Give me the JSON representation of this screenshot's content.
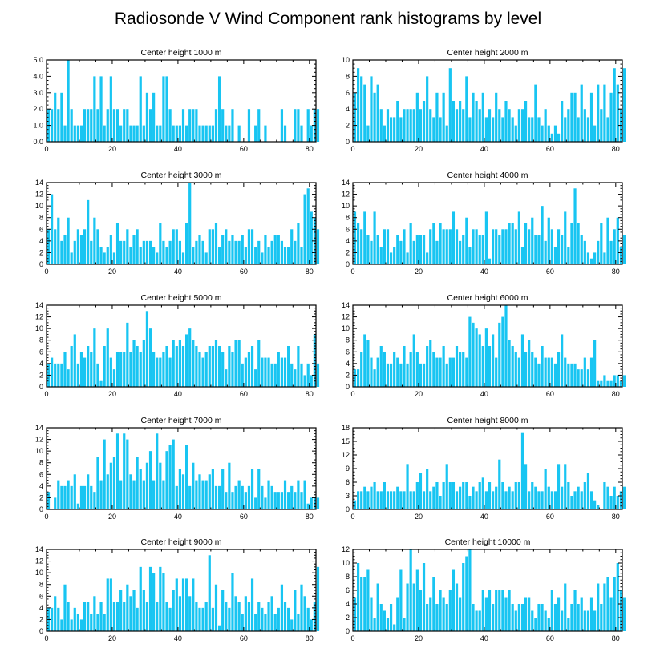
{
  "title": "Radiosonde V Wind Component rank histograms by level",
  "chart_data": [
    {
      "type": "bar",
      "title": "Center height 1000 m",
      "xlim": [
        0,
        82
      ],
      "ylim": [
        0,
        5
      ],
      "xticks": [
        0,
        20,
        40,
        60,
        80
      ],
      "yticks": [
        "0.0",
        "1.0",
        "2.0",
        "3.0",
        "4.0",
        "5.0"
      ],
      "values": [
        2,
        2,
        3,
        2,
        3,
        1,
        5,
        2,
        1,
        1,
        1,
        2,
        2,
        2,
        4,
        2,
        4,
        1,
        2,
        4,
        2,
        2,
        1,
        2,
        2,
        1,
        1,
        1,
        4,
        1,
        3,
        2,
        3,
        1,
        1,
        4,
        4,
        2,
        1,
        1,
        1,
        2,
        1,
        2,
        2,
        2,
        1,
        1,
        1,
        1,
        1,
        2,
        4,
        2,
        1,
        1,
        2,
        0,
        1,
        0,
        0,
        2,
        0,
        1,
        2,
        0,
        1,
        0,
        0,
        0,
        0,
        2,
        1,
        0,
        0,
        2,
        2,
        1,
        0,
        2,
        1,
        2,
        2
      ]
    },
    {
      "type": "bar",
      "title": "Center height 2000 m",
      "xlim": [
        0,
        82
      ],
      "ylim": [
        0,
        10
      ],
      "xticks": [
        0,
        20,
        40,
        60,
        80
      ],
      "yticks": [
        "0",
        "2",
        "4",
        "6",
        "8",
        "10"
      ],
      "values": [
        6,
        9,
        8,
        7,
        2,
        8,
        6,
        7,
        4,
        2,
        4,
        3,
        3,
        5,
        3,
        4,
        4,
        4,
        4,
        6,
        4,
        5,
        8,
        4,
        3,
        6,
        3,
        6,
        2,
        9,
        5,
        4,
        5,
        4,
        8,
        3,
        6,
        5,
        4,
        6,
        3,
        4,
        3,
        6,
        4,
        3,
        5,
        4,
        3,
        2,
        4,
        4,
        5,
        3,
        3,
        7,
        3,
        2,
        4,
        2,
        1,
        2,
        1,
        5,
        3,
        4,
        6,
        6,
        3,
        7,
        4,
        3,
        6,
        2,
        7,
        4,
        7,
        3,
        6,
        9,
        7,
        4,
        9
      ]
    },
    {
      "type": "bar",
      "title": "Center height 3000 m",
      "xlim": [
        0,
        82
      ],
      "ylim": [
        0,
        14
      ],
      "xticks": [
        0,
        20,
        40,
        60,
        80
      ],
      "yticks": [
        "0",
        "2",
        "4",
        "6",
        "8",
        "10",
        "12",
        "14"
      ],
      "values": [
        6,
        12,
        6,
        8,
        4,
        5,
        8,
        2,
        4,
        6,
        5,
        6,
        11,
        4,
        8,
        6,
        3,
        2,
        3,
        5,
        2,
        7,
        4,
        4,
        6,
        3,
        5,
        6,
        3,
        4,
        4,
        4,
        3,
        2,
        7,
        4,
        3,
        4,
        6,
        6,
        4,
        2,
        7,
        14,
        3,
        4,
        5,
        4,
        2,
        6,
        6,
        7,
        3,
        5,
        6,
        4,
        5,
        4,
        4,
        5,
        3,
        6,
        6,
        3,
        4,
        2,
        5,
        3,
        4,
        5,
        5,
        4,
        3,
        3,
        6,
        4,
        7,
        3,
        12,
        13,
        9,
        8,
        6
      ]
    },
    {
      "type": "bar",
      "title": "Center height 4000 m",
      "xlim": [
        0,
        82
      ],
      "ylim": [
        0,
        14
      ],
      "xticks": [
        0,
        20,
        40,
        60,
        80
      ],
      "yticks": [
        "0",
        "2",
        "4",
        "6",
        "8",
        "10",
        "12",
        "14"
      ],
      "values": [
        9,
        7,
        6,
        9,
        5,
        4,
        9,
        5,
        3,
        6,
        6,
        2,
        3,
        5,
        4,
        6,
        2,
        7,
        4,
        5,
        5,
        5,
        2,
        6,
        7,
        4,
        7,
        6,
        6,
        6,
        9,
        6,
        4,
        5,
        8,
        3,
        6,
        6,
        5,
        5,
        9,
        1,
        6,
        6,
        5,
        6,
        6,
        7,
        7,
        6,
        9,
        3,
        7,
        6,
        8,
        5,
        5,
        10,
        4,
        8,
        6,
        3,
        6,
        5,
        9,
        3,
        7,
        13,
        7,
        5,
        4,
        2,
        1,
        2,
        4,
        7,
        2,
        8,
        4,
        6,
        8,
        3,
        5
      ]
    },
    {
      "type": "bar",
      "title": "Center height 5000 m",
      "xlim": [
        0,
        82
      ],
      "ylim": [
        0,
        14
      ],
      "xticks": [
        0,
        20,
        40,
        60,
        80
      ],
      "yticks": [
        "0",
        "2",
        "4",
        "6",
        "8",
        "10",
        "12",
        "14"
      ],
      "values": [
        4,
        5,
        4,
        4,
        4,
        6,
        3,
        7,
        9,
        4,
        6,
        5,
        7,
        6,
        10,
        4,
        1,
        7,
        10,
        5,
        3,
        6,
        6,
        6,
        11,
        6,
        8,
        7,
        6,
        8,
        13,
        10,
        6,
        5,
        5,
        6,
        7,
        5,
        8,
        7,
        8,
        7,
        9,
        10,
        8,
        7,
        6,
        5,
        6,
        7,
        7,
        8,
        7,
        6,
        3,
        7,
        6,
        8,
        8,
        4,
        5,
        6,
        7,
        3,
        8,
        5,
        5,
        5,
        4,
        4,
        6,
        5,
        5,
        7,
        4,
        3,
        7,
        4,
        2,
        4,
        2,
        9,
        4
      ]
    },
    {
      "type": "bar",
      "title": "Center height 6000 m",
      "xlim": [
        0,
        82
      ],
      "ylim": [
        0,
        14
      ],
      "xticks": [
        0,
        20,
        40,
        60,
        80
      ],
      "yticks": [
        "0",
        "2",
        "4",
        "6",
        "8",
        "10",
        "12",
        "14"
      ],
      "values": [
        3,
        3,
        6,
        9,
        8,
        5,
        3,
        5,
        7,
        6,
        4,
        4,
        6,
        5,
        4,
        7,
        4,
        6,
        9,
        6,
        4,
        4,
        7,
        8,
        6,
        5,
        5,
        7,
        4,
        5,
        5,
        7,
        6,
        6,
        5,
        12,
        11,
        10,
        9,
        7,
        10,
        7,
        9,
        5,
        11,
        12,
        14,
        8,
        7,
        6,
        5,
        9,
        6,
        8,
        6,
        5,
        4,
        7,
        5,
        5,
        5,
        4,
        6,
        9,
        5,
        4,
        4,
        4,
        3,
        3,
        5,
        3,
        5,
        8,
        1,
        1,
        2,
        1,
        1,
        2,
        2,
        1,
        2
      ]
    },
    {
      "type": "bar",
      "title": "Center height 7000 m",
      "xlim": [
        0,
        82
      ],
      "ylim": [
        0,
        14
      ],
      "xticks": [
        0,
        20,
        40,
        60,
        80
      ],
      "yticks": [
        "0",
        "2",
        "4",
        "6",
        "8",
        "10",
        "12",
        "14"
      ],
      "values": [
        3,
        0,
        2,
        5,
        4,
        4,
        5,
        4,
        6,
        1,
        4,
        4,
        6,
        4,
        3,
        9,
        5,
        12,
        6,
        8,
        9,
        13,
        5,
        13,
        12,
        6,
        5,
        9,
        7,
        5,
        8,
        10,
        5,
        13,
        8,
        5,
        10,
        11,
        12,
        4,
        7,
        6,
        11,
        4,
        8,
        5,
        6,
        5,
        5,
        6,
        7,
        4,
        4,
        7,
        3,
        8,
        3,
        4,
        5,
        4,
        3,
        4,
        7,
        2,
        7,
        4,
        2,
        5,
        4,
        3,
        3,
        3,
        5,
        3,
        4,
        3,
        5,
        3,
        5,
        1,
        2,
        2,
        2
      ]
    },
    {
      "type": "bar",
      "title": "Center height 8000 m",
      "xlim": [
        0,
        82
      ],
      "ylim": [
        0,
        18
      ],
      "xticks": [
        0,
        20,
        40,
        60,
        80
      ],
      "yticks": [
        "0",
        "3",
        "6",
        "9",
        "12",
        "15",
        "18"
      ],
      "values": [
        2,
        4,
        4,
        5,
        4,
        5,
        6,
        4,
        4,
        6,
        4,
        4,
        4,
        5,
        4,
        4,
        10,
        4,
        4,
        6,
        8,
        4,
        9,
        4,
        5,
        6,
        3,
        6,
        10,
        6,
        6,
        4,
        5,
        6,
        6,
        3,
        5,
        4,
        6,
        7,
        4,
        6,
        4,
        5,
        11,
        6,
        4,
        5,
        4,
        6,
        6,
        17,
        10,
        4,
        6,
        5,
        4,
        4,
        9,
        5,
        4,
        4,
        10,
        5,
        10,
        6,
        3,
        4,
        5,
        4,
        6,
        8,
        4,
        2,
        1,
        0,
        6,
        5,
        3,
        5,
        3,
        4,
        5
      ]
    },
    {
      "type": "bar",
      "title": "Center height 9000 m",
      "xlim": [
        0,
        82
      ],
      "ylim": [
        0,
        14
      ],
      "xticks": [
        0,
        20,
        40,
        60,
        80
      ],
      "yticks": [
        "0",
        "2",
        "4",
        "6",
        "8",
        "10",
        "12",
        "14"
      ],
      "values": [
        4,
        4,
        6,
        4,
        2,
        8,
        5,
        2,
        4,
        3,
        2,
        5,
        5,
        3,
        6,
        3,
        5,
        3,
        9,
        9,
        5,
        5,
        7,
        5,
        8,
        6,
        7,
        4,
        11,
        7,
        5,
        11,
        10,
        5,
        11,
        10,
        5,
        4,
        7,
        9,
        6,
        9,
        9,
        6,
        9,
        5,
        4,
        4,
        5,
        13,
        4,
        8,
        1,
        7,
        5,
        4,
        10,
        6,
        5,
        3,
        6,
        5,
        9,
        3,
        5,
        4,
        3,
        5,
        6,
        3,
        4,
        8,
        5,
        4,
        2,
        7,
        3,
        8,
        6,
        4,
        2,
        5,
        11
      ]
    },
    {
      "type": "bar",
      "title": "Center height 10000 m",
      "xlim": [
        0,
        82
      ],
      "ylim": [
        0,
        12
      ],
      "xticks": [
        0,
        20,
        40,
        60,
        80
      ],
      "yticks": [
        "0",
        "2",
        "4",
        "6",
        "8",
        "10",
        "12"
      ],
      "values": [
        5,
        10,
        8,
        8,
        9,
        5,
        2,
        7,
        4,
        3,
        2,
        4,
        1,
        5,
        9,
        2,
        7,
        12,
        7,
        9,
        6,
        10,
        4,
        5,
        8,
        4,
        6,
        5,
        4,
        6,
        9,
        7,
        5,
        10,
        11,
        12,
        4,
        3,
        3,
        6,
        5,
        6,
        4,
        6,
        6,
        6,
        5,
        6,
        4,
        3,
        4,
        4,
        5,
        5,
        3,
        2,
        4,
        4,
        3,
        2,
        6,
        4,
        5,
        3,
        7,
        2,
        4,
        6,
        4,
        5,
        3,
        3,
        5,
        3,
        7,
        4,
        7,
        8,
        5,
        8,
        10,
        6,
        5
      ]
    }
  ]
}
